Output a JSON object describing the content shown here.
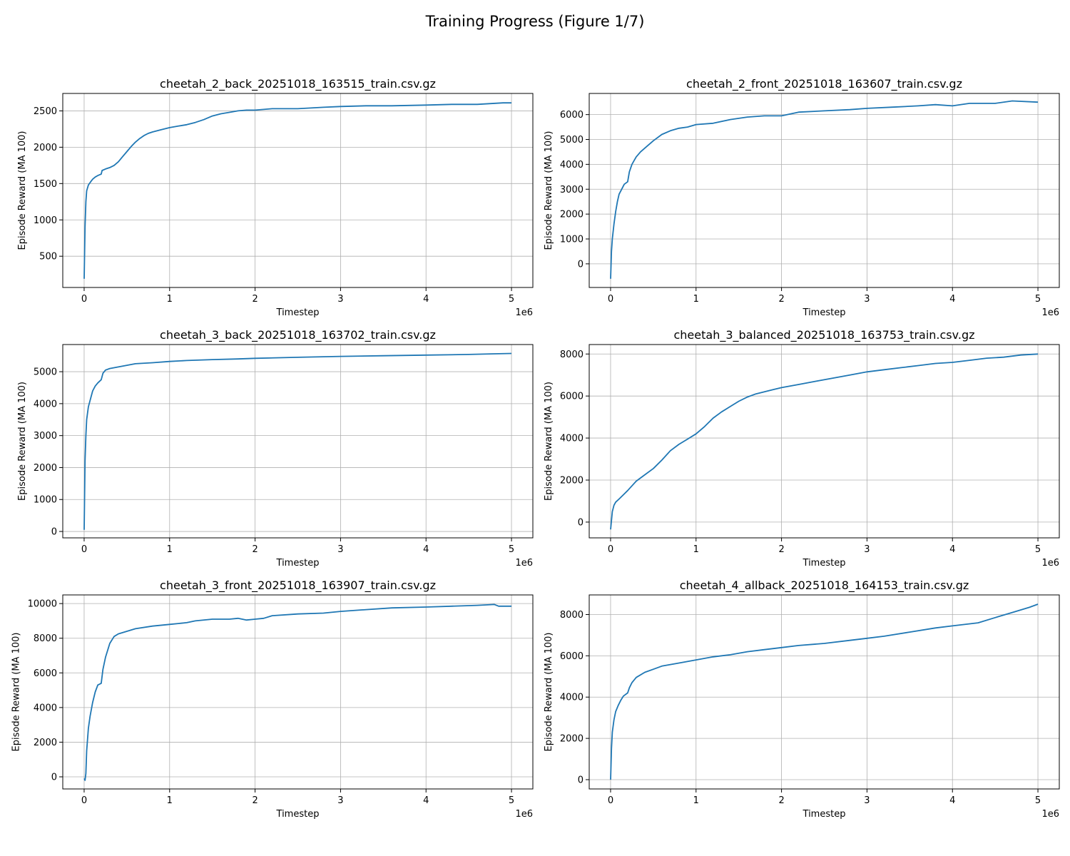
{
  "figure": {
    "title": "Training Progress (Figure 1/7)"
  },
  "chart_data": [
    {
      "type": "line",
      "title": "cheetah_2_back_20251018_163515_train.csv.gz",
      "xlabel": "Timestep",
      "ylabel": "Episode Reward (MA 100)",
      "x_offset_label": "1e6",
      "xlim": [
        -0.25,
        5.25
      ],
      "ylim": [
        70,
        2740
      ],
      "xticks": [
        0,
        1,
        2,
        3,
        4,
        5
      ],
      "yticks": [
        500,
        1000,
        1500,
        2000,
        2500
      ],
      "grid": true,
      "series": [
        {
          "color": "#1f77b4",
          "x": [
            0,
            0.01,
            0.02,
            0.03,
            0.05,
            0.08,
            0.1,
            0.13,
            0.16,
            0.2,
            0.21,
            0.25,
            0.3,
            0.35,
            0.4,
            0.45,
            0.5,
            0.55,
            0.6,
            0.65,
            0.7,
            0.75,
            0.8,
            0.9,
            1.0,
            1.1,
            1.2,
            1.3,
            1.4,
            1.5,
            1.6,
            1.7,
            1.8,
            1.9,
            2.0,
            2.2,
            2.5,
            2.8,
            3.0,
            3.3,
            3.6,
            4.0,
            4.3,
            4.6,
            4.9,
            5.0
          ],
          "y": [
            190,
            900,
            1250,
            1400,
            1480,
            1530,
            1560,
            1590,
            1610,
            1630,
            1680,
            1700,
            1720,
            1750,
            1800,
            1870,
            1940,
            2010,
            2070,
            2120,
            2160,
            2190,
            2210,
            2240,
            2270,
            2290,
            2310,
            2340,
            2380,
            2430,
            2460,
            2480,
            2500,
            2510,
            2510,
            2530,
            2530,
            2550,
            2560,
            2570,
            2570,
            2580,
            2590,
            2590,
            2610,
            2610
          ]
        }
      ]
    },
    {
      "type": "line",
      "title": "cheetah_2_front_20251018_163607_train.csv.gz",
      "xlabel": "Timestep",
      "ylabel": "Episode Reward (MA 100)",
      "x_offset_label": "1e6",
      "xlim": [
        -0.25,
        5.25
      ],
      "ylim": [
        -950,
        6850
      ],
      "xticks": [
        0,
        1,
        2,
        3,
        4,
        5
      ],
      "yticks": [
        0,
        1000,
        2000,
        3000,
        4000,
        5000,
        6000
      ],
      "grid": true,
      "series": [
        {
          "color": "#1f77b4",
          "x": [
            0,
            0.01,
            0.02,
            0.04,
            0.06,
            0.08,
            0.1,
            0.13,
            0.16,
            0.2,
            0.22,
            0.25,
            0.3,
            0.35,
            0.4,
            0.5,
            0.6,
            0.7,
            0.8,
            0.9,
            1.0,
            1.2,
            1.4,
            1.6,
            1.8,
            2.0,
            2.2,
            2.5,
            2.8,
            3.0,
            3.3,
            3.6,
            3.8,
            4.0,
            4.2,
            4.5,
            4.7,
            5.0
          ],
          "y": [
            -600,
            500,
            1000,
            1600,
            2100,
            2500,
            2800,
            3000,
            3200,
            3300,
            3700,
            4000,
            4300,
            4500,
            4650,
            4950,
            5200,
            5350,
            5450,
            5500,
            5600,
            5650,
            5800,
            5900,
            5950,
            5950,
            6100,
            6150,
            6200,
            6250,
            6300,
            6350,
            6400,
            6350,
            6450,
            6450,
            6550,
            6500
          ]
        }
      ]
    },
    {
      "type": "line",
      "title": "cheetah_3_back_20251018_163702_train.csv.gz",
      "xlabel": "Timestep",
      "ylabel": "Episode Reward (MA 100)",
      "x_offset_label": "1e6",
      "xlim": [
        -0.25,
        5.25
      ],
      "ylim": [
        -200,
        5850
      ],
      "xticks": [
        0,
        1,
        2,
        3,
        4,
        5
      ],
      "yticks": [
        0,
        1000,
        2000,
        3000,
        4000,
        5000
      ],
      "grid": true,
      "series": [
        {
          "color": "#1f77b4",
          "x": [
            0,
            0.01,
            0.02,
            0.03,
            0.05,
            0.08,
            0.1,
            0.13,
            0.16,
            0.2,
            0.22,
            0.25,
            0.3,
            0.4,
            0.5,
            0.6,
            0.8,
            1.0,
            1.2,
            1.5,
            1.8,
            2.0,
            2.5,
            3.0,
            3.5,
            4.0,
            4.5,
            4.8,
            5.0
          ],
          "y": [
            50,
            2200,
            3000,
            3500,
            3900,
            4200,
            4400,
            4550,
            4650,
            4750,
            4950,
            5050,
            5100,
            5150,
            5200,
            5250,
            5280,
            5320,
            5350,
            5380,
            5400,
            5420,
            5450,
            5480,
            5500,
            5520,
            5540,
            5560,
            5570
          ]
        }
      ]
    },
    {
      "type": "line",
      "title": "cheetah_3_balanced_20251018_163753_train.csv.gz",
      "xlabel": "Timestep",
      "ylabel": "Episode Reward (MA 100)",
      "x_offset_label": "1e6",
      "xlim": [
        -0.25,
        5.25
      ],
      "ylim": [
        -750,
        8450
      ],
      "xticks": [
        0,
        1,
        2,
        3,
        4,
        5
      ],
      "yticks": [
        0,
        2000,
        4000,
        6000,
        8000
      ],
      "grid": true,
      "series": [
        {
          "color": "#1f77b4",
          "x": [
            0,
            0.02,
            0.04,
            0.06,
            0.1,
            0.15,
            0.2,
            0.3,
            0.4,
            0.5,
            0.6,
            0.7,
            0.8,
            0.9,
            1.0,
            1.1,
            1.2,
            1.3,
            1.4,
            1.5,
            1.6,
            1.7,
            1.8,
            1.9,
            2.0,
            2.2,
            2.4,
            2.6,
            2.8,
            3.0,
            3.2,
            3.4,
            3.6,
            3.8,
            4.0,
            4.2,
            4.4,
            4.6,
            4.8,
            5.0
          ],
          "y": [
            -350,
            500,
            800,
            950,
            1100,
            1300,
            1500,
            1950,
            2250,
            2550,
            2950,
            3400,
            3700,
            3950,
            4200,
            4550,
            4950,
            5250,
            5500,
            5750,
            5950,
            6100,
            6200,
            6300,
            6400,
            6550,
            6700,
            6850,
            7000,
            7150,
            7250,
            7350,
            7450,
            7550,
            7600,
            7700,
            7800,
            7850,
            7950,
            8000
          ]
        }
      ]
    },
    {
      "type": "line",
      "title": "cheetah_3_front_20251018_163907_train.csv.gz",
      "xlabel": "Timestep",
      "ylabel": "Episode Reward (MA 100)",
      "x_offset_label": "1e6",
      "xlim": [
        -0.25,
        5.25
      ],
      "ylim": [
        -700,
        10500
      ],
      "xticks": [
        0,
        1,
        2,
        3,
        4,
        5
      ],
      "yticks": [
        0,
        2000,
        4000,
        6000,
        8000,
        10000
      ],
      "grid": true,
      "series": [
        {
          "color": "#1f77b4",
          "x": [
            0,
            0.01,
            0.02,
            0.03,
            0.05,
            0.07,
            0.1,
            0.13,
            0.16,
            0.2,
            0.22,
            0.25,
            0.3,
            0.35,
            0.4,
            0.5,
            0.6,
            0.8,
            1.0,
            1.1,
            1.2,
            1.3,
            1.5,
            1.7,
            1.8,
            1.9,
            2.0,
            2.1,
            2.2,
            2.5,
            2.8,
            3.0,
            3.3,
            3.6,
            4.0,
            4.3,
            4.6,
            4.8,
            4.85,
            5.0
          ],
          "y": [
            -100,
            -200,
            200,
            1500,
            2800,
            3500,
            4300,
            4900,
            5300,
            5400,
            6200,
            6900,
            7700,
            8100,
            8250,
            8400,
            8550,
            8700,
            8800,
            8850,
            8900,
            9000,
            9100,
            9100,
            9150,
            9050,
            9100,
            9150,
            9300,
            9400,
            9450,
            9550,
            9650,
            9750,
            9800,
            9850,
            9900,
            9950,
            9850,
            9850
          ]
        }
      ]
    },
    {
      "type": "line",
      "title": "cheetah_4_allback_20251018_164153_train.csv.gz",
      "xlabel": "Timestep",
      "ylabel": "Episode Reward (MA 100)",
      "x_offset_label": "1e6",
      "xlim": [
        -0.25,
        5.25
      ],
      "ylim": [
        -450,
        8950
      ],
      "xticks": [
        0,
        1,
        2,
        3,
        4,
        5
      ],
      "yticks": [
        0,
        2000,
        4000,
        6000,
        8000
      ],
      "grid": true,
      "series": [
        {
          "color": "#1f77b4",
          "x": [
            0,
            0.01,
            0.02,
            0.04,
            0.06,
            0.09,
            0.12,
            0.15,
            0.2,
            0.22,
            0.25,
            0.3,
            0.4,
            0.5,
            0.6,
            0.8,
            1.0,
            1.2,
            1.4,
            1.6,
            1.8,
            2.0,
            2.2,
            2.5,
            2.8,
            3.0,
            3.2,
            3.5,
            3.8,
            4.0,
            4.3,
            4.5,
            4.7,
            4.9,
            5.0
          ],
          "y": [
            0,
            1500,
            2300,
            2900,
            3300,
            3600,
            3850,
            4050,
            4200,
            4450,
            4700,
            4950,
            5200,
            5350,
            5500,
            5650,
            5800,
            5950,
            6050,
            6200,
            6300,
            6400,
            6500,
            6600,
            6750,
            6850,
            6950,
            7150,
            7350,
            7450,
            7600,
            7850,
            8100,
            8350,
            8500
          ]
        }
      ]
    }
  ]
}
